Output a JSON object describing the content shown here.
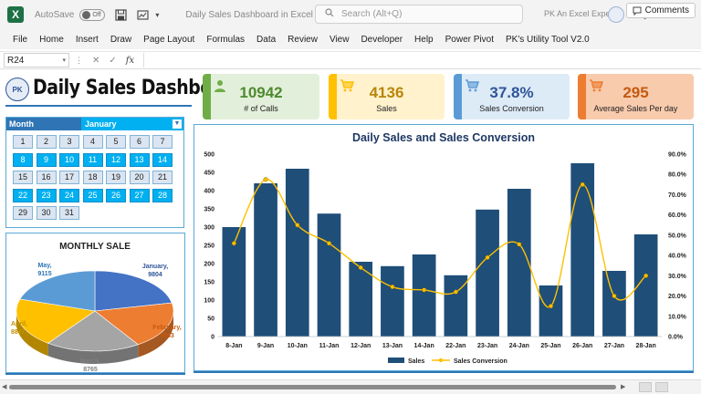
{
  "titlebar": {
    "autosave_label": "AutoSave",
    "autosave_state": "Off",
    "doc_title": "Daily Sales Dashboard in Excel",
    "search_placeholder": "Search (Alt+Q)",
    "user_name": "PK An Excel Expert"
  },
  "menu": [
    "File",
    "Home",
    "Insert",
    "Draw",
    "Page Layout",
    "Formulas",
    "Data",
    "Review",
    "View",
    "Developer",
    "Help",
    "Power Pivot",
    "PK's Utility Tool V2.0"
  ],
  "comments_label": "Comments",
  "formula_bar": {
    "name_box": "R24",
    "fx": "fx"
  },
  "dashboard": {
    "title": "Daily Sales Dashboard",
    "kpis": [
      {
        "value": "10942",
        "label": "# of Calls",
        "color": "#4e8a2e",
        "bg": "#e2efda",
        "bar": "#70ad47",
        "icon": "person-icon"
      },
      {
        "value": "4136",
        "label": "Sales",
        "color": "#b8860b",
        "bg": "#fff2cc",
        "bar": "#ffc000",
        "icon": "cart-icon"
      },
      {
        "value": "37.8%",
        "label": "Sales Conversion",
        "color": "#2f5597",
        "bg": "#ddebf7",
        "bar": "#5b9bd5",
        "icon": "cart-icon"
      },
      {
        "value": "295",
        "label": "Average Sales Per day",
        "color": "#c55a11",
        "bg": "#f8cbad",
        "bar": "#ed7d31",
        "icon": "cart-icon"
      }
    ],
    "slicer": {
      "header_label": "Month",
      "selected": "January",
      "days": [
        {
          "d": "1",
          "on": false
        },
        {
          "d": "2",
          "on": false
        },
        {
          "d": "3",
          "on": false
        },
        {
          "d": "4",
          "on": false
        },
        {
          "d": "5",
          "on": false
        },
        {
          "d": "6",
          "on": false
        },
        {
          "d": "7",
          "on": false
        },
        {
          "d": "8",
          "on": true
        },
        {
          "d": "9",
          "on": true
        },
        {
          "d": "10",
          "on": true
        },
        {
          "d": "11",
          "on": true
        },
        {
          "d": "12",
          "on": true
        },
        {
          "d": "13",
          "on": true
        },
        {
          "d": "14",
          "on": true
        },
        {
          "d": "15",
          "on": false
        },
        {
          "d": "16",
          "on": false
        },
        {
          "d": "17",
          "on": false
        },
        {
          "d": "18",
          "on": false
        },
        {
          "d": "19",
          "on": false
        },
        {
          "d": "20",
          "on": false
        },
        {
          "d": "21",
          "on": false
        },
        {
          "d": "22",
          "on": true
        },
        {
          "d": "23",
          "on": true
        },
        {
          "d": "24",
          "on": true
        },
        {
          "d": "25",
          "on": true
        },
        {
          "d": "26",
          "on": true
        },
        {
          "d": "27",
          "on": true
        },
        {
          "d": "28",
          "on": true
        },
        {
          "d": "29",
          "on": false
        },
        {
          "d": "30",
          "on": false
        },
        {
          "d": "31",
          "on": false
        }
      ]
    }
  },
  "chart_data": [
    {
      "type": "pie",
      "title": "MONTHLY SALE",
      "slices": [
        {
          "name": "January",
          "value": 9804,
          "color": "#4472c4",
          "label_color": "#2f5597"
        },
        {
          "name": "February",
          "value": 8583,
          "color": "#ed7d31",
          "label_color": "#c55a11"
        },
        {
          "name": "March",
          "value": 8765,
          "color": "#a5a5a5",
          "label_color": "#7f7f7f"
        },
        {
          "name": "April",
          "value": 8847,
          "color": "#ffc000",
          "label_color": "#bf9000"
        },
        {
          "name": "May",
          "value": 9115,
          "color": "#5b9bd5",
          "label_color": "#2f75b5"
        }
      ]
    },
    {
      "type": "bar",
      "title": "Daily Sales and Sales Conversion",
      "categories": [
        "8-Jan",
        "9-Jan",
        "10-Jan",
        "11-Jan",
        "12-Jan",
        "13-Jan",
        "14-Jan",
        "22-Jan",
        "23-Jan",
        "24-Jan",
        "25-Jan",
        "26-Jan",
        "27-Jan",
        "28-Jan"
      ],
      "series": [
        {
          "name": "Sales",
          "kind": "bar",
          "axis": "left",
          "color": "#1f4e79",
          "values": [
            300,
            420,
            460,
            337,
            205,
            193,
            225,
            168,
            348,
            405,
            140,
            475,
            180,
            280
          ]
        },
        {
          "name": "Sales Conversion",
          "kind": "line",
          "axis": "right",
          "color": "#ffc000",
          "values": [
            0.46,
            0.775,
            0.55,
            0.46,
            0.34,
            0.245,
            0.23,
            0.22,
            0.39,
            0.455,
            0.15,
            0.75,
            0.2,
            0.3
          ]
        }
      ],
      "ylim_left": [
        0,
        500
      ],
      "yticks_left": [
        "0",
        "50",
        "100",
        "150",
        "200",
        "250",
        "300",
        "350",
        "400",
        "450",
        "500"
      ],
      "ylim_right": [
        0,
        0.9
      ],
      "yticks_right": [
        "0.0%",
        "10.0%",
        "20.0%",
        "30.0%",
        "40.0%",
        "50.0%",
        "60.0%",
        "70.0%",
        "80.0%",
        "90.0%"
      ],
      "legend": "bottom"
    }
  ]
}
